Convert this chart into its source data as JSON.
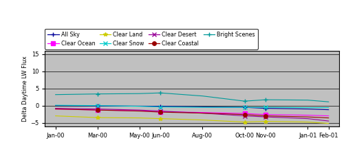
{
  "ylabel": "Delta Daytime LW Flux",
  "background_color": "#c0c0c0",
  "ylim": [
    -6,
    16
  ],
  "yticks": [
    -5,
    0,
    5,
    10,
    15
  ],
  "x_tick_positions": [
    0,
    2,
    4,
    5,
    7,
    9,
    10,
    12,
    13
  ],
  "x_tick_labels": [
    "Jan-00",
    "Mar-00",
    "May-00",
    "Jun-00",
    "Aug-00",
    "Oct-00",
    "Nov-00",
    "Jan-01",
    "Feb-01"
  ],
  "series_order": [
    "All Sky",
    "Clear Ocean",
    "Clear Land",
    "Clear Snow",
    "Clear Desert",
    "Clear Coastal",
    "Bright Scenes"
  ],
  "colors": {
    "All Sky": "#000099",
    "Clear Ocean": "#ff00ff",
    "Clear Land": "#cccc00",
    "Clear Snow": "#00cccc",
    "Clear Desert": "#990099",
    "Clear Coastal": "#990000",
    "Bright Scenes": "#009999"
  },
  "markers": {
    "All Sky": "+",
    "Clear Ocean": "s",
    "Clear Land": "*",
    "Clear Snow": "x",
    "Clear Desert": "x",
    "Clear Coastal": "o",
    "Bright Scenes": "+"
  },
  "full_x": [
    0,
    2,
    4,
    5,
    7,
    9,
    10,
    12,
    13
  ],
  "full_y": {
    "All Sky": [
      0.0,
      -0.1,
      -0.15,
      -0.2,
      -0.35,
      -0.5,
      -0.8,
      -1.0,
      -1.2
    ],
    "Clear Ocean": [
      -1.0,
      -1.3,
      -1.5,
      -1.8,
      -2.0,
      -2.3,
      -2.6,
      -2.8,
      -3.0
    ],
    "Clear Land": [
      -3.0,
      -3.5,
      -3.6,
      -3.8,
      -4.2,
      -4.8,
      -4.6,
      -4.8,
      -5.2
    ],
    "Clear Snow": [
      0.1,
      0.0,
      -0.2,
      -0.4,
      -0.5,
      -0.5,
      -0.5,
      -0.6,
      -0.6
    ],
    "Clear Desert": [
      -0.8,
      -1.0,
      -1.3,
      -1.6,
      -2.2,
      -3.0,
      -3.3,
      -3.8,
      -4.5
    ],
    "Clear Coastal": [
      -1.0,
      -1.3,
      -1.6,
      -1.9,
      -2.2,
      -2.6,
      -3.0,
      -3.3,
      -3.6
    ],
    "Bright Scenes": [
      3.2,
      3.4,
      3.5,
      3.7,
      2.8,
      1.3,
      1.7,
      1.6,
      1.1
    ]
  },
  "marker_x": {
    "All Sky": [
      2,
      5,
      9,
      10
    ],
    "Clear Ocean": [
      2,
      5,
      9,
      10
    ],
    "Clear Land": [
      2,
      5,
      9,
      10
    ],
    "Clear Snow": [
      2,
      5,
      9,
      10
    ],
    "Clear Desert": [
      2,
      5,
      9,
      10
    ],
    "Clear Coastal": [
      2,
      5,
      9,
      10
    ],
    "Bright Scenes": [
      2,
      5,
      9,
      10
    ]
  },
  "marker_y": {
    "All Sky": [
      -0.1,
      -0.2,
      -0.5,
      -0.8
    ],
    "Clear Ocean": [
      -1.3,
      -1.8,
      -2.3,
      -2.6
    ],
    "Clear Land": [
      -3.5,
      -3.8,
      -4.8,
      -4.6
    ],
    "Clear Snow": [
      0.0,
      -0.4,
      -0.5,
      -0.5
    ],
    "Clear Desert": [
      -1.0,
      -1.6,
      -3.0,
      -3.3
    ],
    "Clear Coastal": [
      -1.3,
      -1.9,
      -2.6,
      -3.0
    ],
    "Bright Scenes": [
      3.4,
      3.7,
      1.3,
      1.7
    ]
  }
}
